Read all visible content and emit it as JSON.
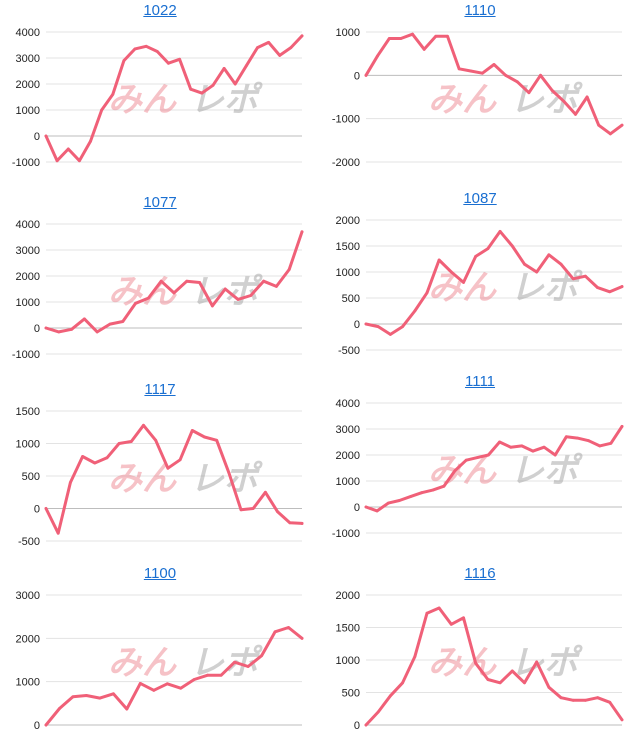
{
  "series_color": "#f06078",
  "link_color": "#1a6fd1",
  "watermark": {
    "part1": "みん",
    "part2": "レポ"
  },
  "chart_data": [
    {
      "type": "line",
      "title": "1022",
      "ylim": [
        -1000,
        4000
      ],
      "ticks": [
        4000,
        3000,
        2000,
        1000,
        0,
        -1000
      ],
      "tick_labels": [
        "4000",
        "3000",
        "2000",
        "1000",
        "0",
        "-1000"
      ],
      "y": [
        0,
        -950,
        -500,
        -950,
        -200,
        1000,
        1600,
        2900,
        3350,
        3450,
        3250,
        2800,
        2950,
        1800,
        1650,
        1950,
        2600,
        2000,
        2700,
        3400,
        3600,
        3100,
        3400,
        3850
      ]
    },
    {
      "type": "line",
      "title": "1110",
      "ylim": [
        -2000,
        1000
      ],
      "ticks": [
        1000,
        0,
        -1000,
        -2000
      ],
      "tick_labels": [
        "1000",
        "0",
        "-1000",
        "-2000"
      ],
      "y": [
        0,
        450,
        850,
        850,
        950,
        600,
        900,
        900,
        150,
        100,
        50,
        250,
        0,
        -150,
        -400,
        0,
        -350,
        -600,
        -900,
        -500,
        -1150,
        -1350,
        -1150
      ]
    },
    {
      "type": "line",
      "title": "1077",
      "ylim": [
        -1000,
        4000
      ],
      "ticks": [
        4000,
        3000,
        2000,
        1000,
        0,
        -1000
      ],
      "tick_labels": [
        "4000",
        "3000",
        "2000",
        "1000",
        "0",
        "-1000"
      ],
      "y": [
        0,
        -150,
        -50,
        350,
        -150,
        150,
        250,
        950,
        1150,
        1800,
        1350,
        1800,
        1750,
        850,
        1500,
        1100,
        1250,
        1800,
        1600,
        2250,
        3700
      ]
    },
    {
      "type": "line",
      "title": "1087",
      "ylim": [
        -500,
        2000
      ],
      "ticks": [
        2000,
        1500,
        1000,
        500,
        0,
        -500
      ],
      "tick_labels": [
        "2000",
        "1500",
        "1000",
        "500",
        "0",
        "-500"
      ],
      "y": [
        0,
        -50,
        -200,
        -50,
        250,
        600,
        1230,
        1000,
        800,
        1300,
        1450,
        1780,
        1500,
        1150,
        1000,
        1330,
        1150,
        870,
        920,
        700,
        620,
        720
      ]
    },
    {
      "type": "line",
      "title": "1117",
      "ylim": [
        -500,
        1500
      ],
      "ticks": [
        1500,
        1000,
        500,
        0,
        -500
      ],
      "tick_labels": [
        "1500",
        "1000",
        "500",
        "0",
        "-500"
      ],
      "y": [
        0,
        -380,
        400,
        800,
        700,
        780,
        1000,
        1030,
        1280,
        1050,
        620,
        750,
        1200,
        1100,
        1050,
        550,
        -20,
        0,
        250,
        -50,
        -220,
        -230
      ]
    },
    {
      "type": "line",
      "title": "1111",
      "ylim": [
        -1000,
        4000
      ],
      "ticks": [
        4000,
        3000,
        2000,
        1000,
        0,
        -1000
      ],
      "tick_labels": [
        "4000",
        "3000",
        "2000",
        "1000",
        "0",
        "-1000"
      ],
      "y": [
        0,
        -150,
        150,
        250,
        400,
        550,
        650,
        800,
        1400,
        1800,
        1900,
        2000,
        2500,
        2300,
        2350,
        2150,
        2300,
        2000,
        2700,
        2650,
        2550,
        2350,
        2450,
        3100
      ]
    },
    {
      "type": "line",
      "title": "1100",
      "ylim": [
        0,
        3000
      ],
      "ticks": [
        3000,
        2000,
        1000,
        0
      ],
      "tick_labels": [
        "3000",
        "2000",
        "1000",
        "0"
      ],
      "y": [
        0,
        380,
        650,
        680,
        620,
        720,
        370,
        960,
        800,
        950,
        850,
        1050,
        1150,
        1150,
        1450,
        1350,
        1600,
        2150,
        2250,
        2000
      ]
    },
    {
      "type": "line",
      "title": "1116",
      "ylim": [
        0,
        2000
      ],
      "ticks": [
        2000,
        1500,
        1000,
        500,
        0
      ],
      "tick_labels": [
        "2000",
        "1500",
        "1000",
        "500",
        "0"
      ],
      "y": [
        0,
        200,
        450,
        650,
        1050,
        1720,
        1800,
        1550,
        1650,
        950,
        700,
        650,
        830,
        650,
        970,
        580,
        420,
        380,
        380,
        420,
        350,
        80
      ]
    }
  ]
}
